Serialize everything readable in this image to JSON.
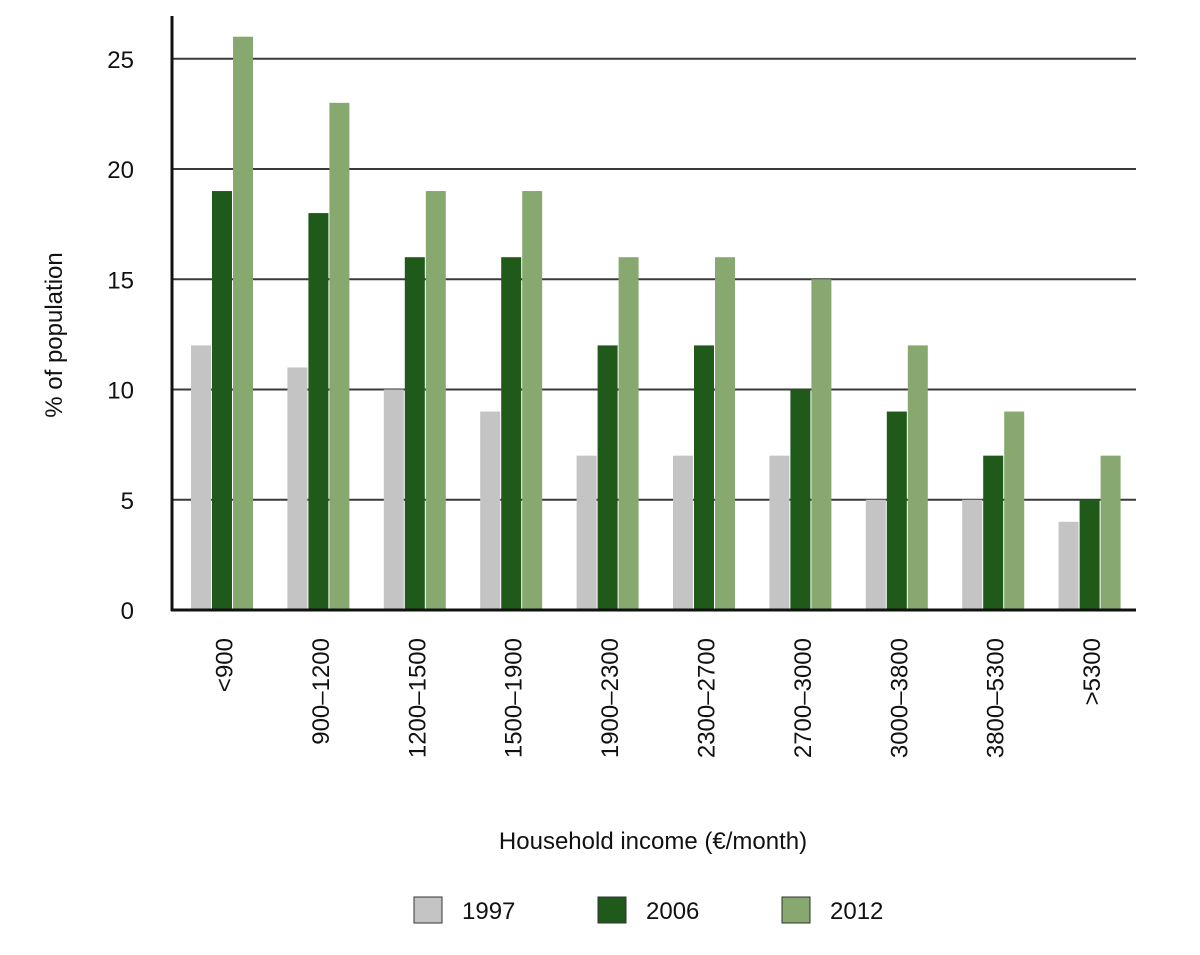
{
  "chart_data": {
    "type": "bar",
    "title": "",
    "xlabel": "Household income (€/month)",
    "ylabel": "% of population",
    "ylim": [
      0,
      25
    ],
    "yticks": [
      0,
      5,
      10,
      15,
      20,
      25
    ],
    "grid": true,
    "legend_position": "bottom",
    "categories": [
      "<900",
      "900–1200",
      "1200–1500",
      "1500–1900",
      "1900–2300",
      "2300–2700",
      "2700–3000",
      "3000–3800",
      "3800–5300",
      ">5300"
    ],
    "series": [
      {
        "name": "1997",
        "color": "#c4c4c4",
        "values": [
          12,
          11,
          10,
          9,
          7,
          7,
          7,
          5,
          5,
          4
        ]
      },
      {
        "name": "2006",
        "color": "#1f5a1a",
        "values": [
          19,
          18,
          16,
          16,
          12,
          12,
          10,
          9,
          7,
          5
        ]
      },
      {
        "name": "2012",
        "color": "#87a86e",
        "values": [
          26,
          23,
          19,
          19,
          16,
          16,
          15,
          12,
          9,
          7
        ]
      }
    ]
  }
}
